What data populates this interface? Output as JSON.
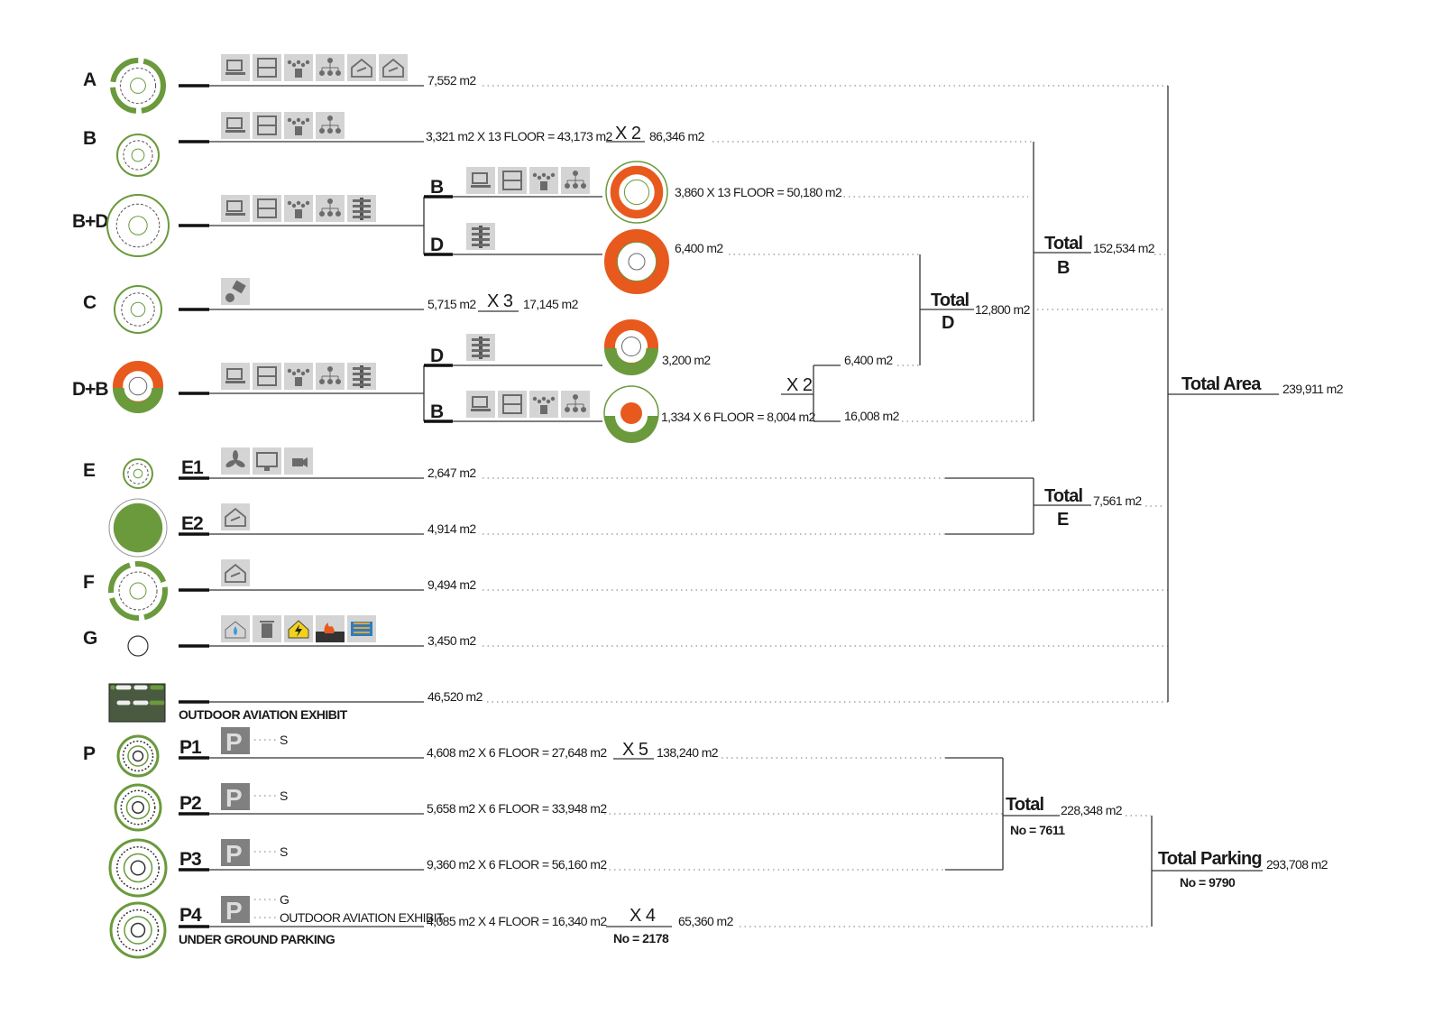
{
  "colors": {
    "green": "#6a9a3c",
    "orange": "#e8591e",
    "icon_bg": "#d4d4d4",
    "icon_fg": "#6b6b6b",
    "line": "#333333"
  },
  "rows": {
    "A": {
      "label": "A",
      "value": "7,552 m2",
      "icons": [
        "computer-icon",
        "office-icon",
        "meeting-icon",
        "hierarchy-icon",
        "house-icon",
        "house-icon"
      ]
    },
    "B": {
      "label": "B",
      "calc": "3,321 m2 X 13 FLOOR = 43,173 m2",
      "mult": "X 2",
      "value": "86,346 m2",
      "icons": [
        "computer-icon",
        "office-icon",
        "meeting-icon",
        "hierarchy-icon"
      ]
    },
    "BD": {
      "label": "B+D",
      "icons": [
        "computer-icon",
        "office-icon",
        "meeting-icon",
        "hierarchy-icon",
        "tree-icon"
      ],
      "sub_b": {
        "label": "B",
        "value": "3,860 X 13 FLOOR = 50,180 m2",
        "icons": [
          "computer-icon",
          "office-icon",
          "meeting-icon",
          "hierarchy-icon"
        ]
      },
      "sub_d": {
        "label": "D",
        "value": "6,400 m2",
        "icons": [
          "tree-icon"
        ]
      }
    },
    "C": {
      "label": "C",
      "value": "5,715 m2",
      "mult": "X 3",
      "total": "17,145 m2",
      "icons": [
        "lab-icon"
      ]
    },
    "DB": {
      "label": "D+B",
      "icons": [
        "computer-icon",
        "office-icon",
        "meeting-icon",
        "hierarchy-icon",
        "tree-icon"
      ],
      "sub_d": {
        "label": "D",
        "value": "3,200 m2",
        "icons": [
          "tree-icon"
        ]
      },
      "sub_b": {
        "label": "B",
        "value": "1,334 X 6 FLOOR = 8,004 m2",
        "icons": [
          "computer-icon",
          "office-icon",
          "meeting-icon",
          "hierarchy-icon"
        ]
      },
      "mult": "X 2",
      "d_total": "6,400 m2",
      "b_total": "16,008 m2"
    },
    "E": {
      "label": "E",
      "e1": {
        "label": "E1",
        "value": "2,647 m2",
        "icons": [
          "fan-icon",
          "monitor-icon",
          "camera-icon"
        ]
      },
      "e2": {
        "label": "E2",
        "value": "4,914 m2",
        "icons": [
          "hangar-icon"
        ]
      }
    },
    "F": {
      "label": "F",
      "value": "9,494 m2",
      "icons": [
        "hangar-icon"
      ]
    },
    "G": {
      "label": "G",
      "value": "3,450 m2",
      "icons": [
        "water-icon",
        "trash-icon",
        "electric-icon",
        "fire-icon",
        "server-icon"
      ]
    },
    "OUT": {
      "label": "OUTDOOR AVIATION EXHIBIT",
      "value": "46,520 m2"
    },
    "P": {
      "label": "P",
      "p1": {
        "label": "P1",
        "tag": "S",
        "calc": "4,608 m2  X 6 FLOOR = 27,648 m2",
        "mult": "X 5",
        "value": "138,240 m2"
      },
      "p2": {
        "label": "P2",
        "tag": "S",
        "calc": "5,658 m2 X 6 FLOOR = 33,948 m2"
      },
      "p3": {
        "label": "P3",
        "tag": "S",
        "calc": "9,360 m2 X 6 FLOOR = 56,160 m2"
      },
      "p4": {
        "label": "P4",
        "tag": "G",
        "tag2": "OUTDOOR AVIATION EXHIBIT",
        "calc": "4,085 m2 X 4 FLOOR = 16,340 m2",
        "mult": "X 4",
        "no": "No = 2178",
        "value": "65,360 m2",
        "caption": "UNDER GROUND PARKING"
      },
      "parking_icon_text": "P"
    }
  },
  "totals": {
    "d": {
      "title": "Total",
      "sub": "D",
      "value": "12,800 m2"
    },
    "b": {
      "title": "Total",
      "sub": "B",
      "value": "152,534 m2"
    },
    "e": {
      "title": "Total",
      "sub": "E",
      "value": "7,561 m2"
    },
    "area": {
      "title": "Total Area",
      "value": "239,911 m2"
    },
    "parking": {
      "title": "Total",
      "no": "No = 7611",
      "value": "228,348 m2"
    },
    "total_parking": {
      "title": "Total Parking",
      "no": "No = 9790",
      "value": "293,708 m2"
    }
  }
}
